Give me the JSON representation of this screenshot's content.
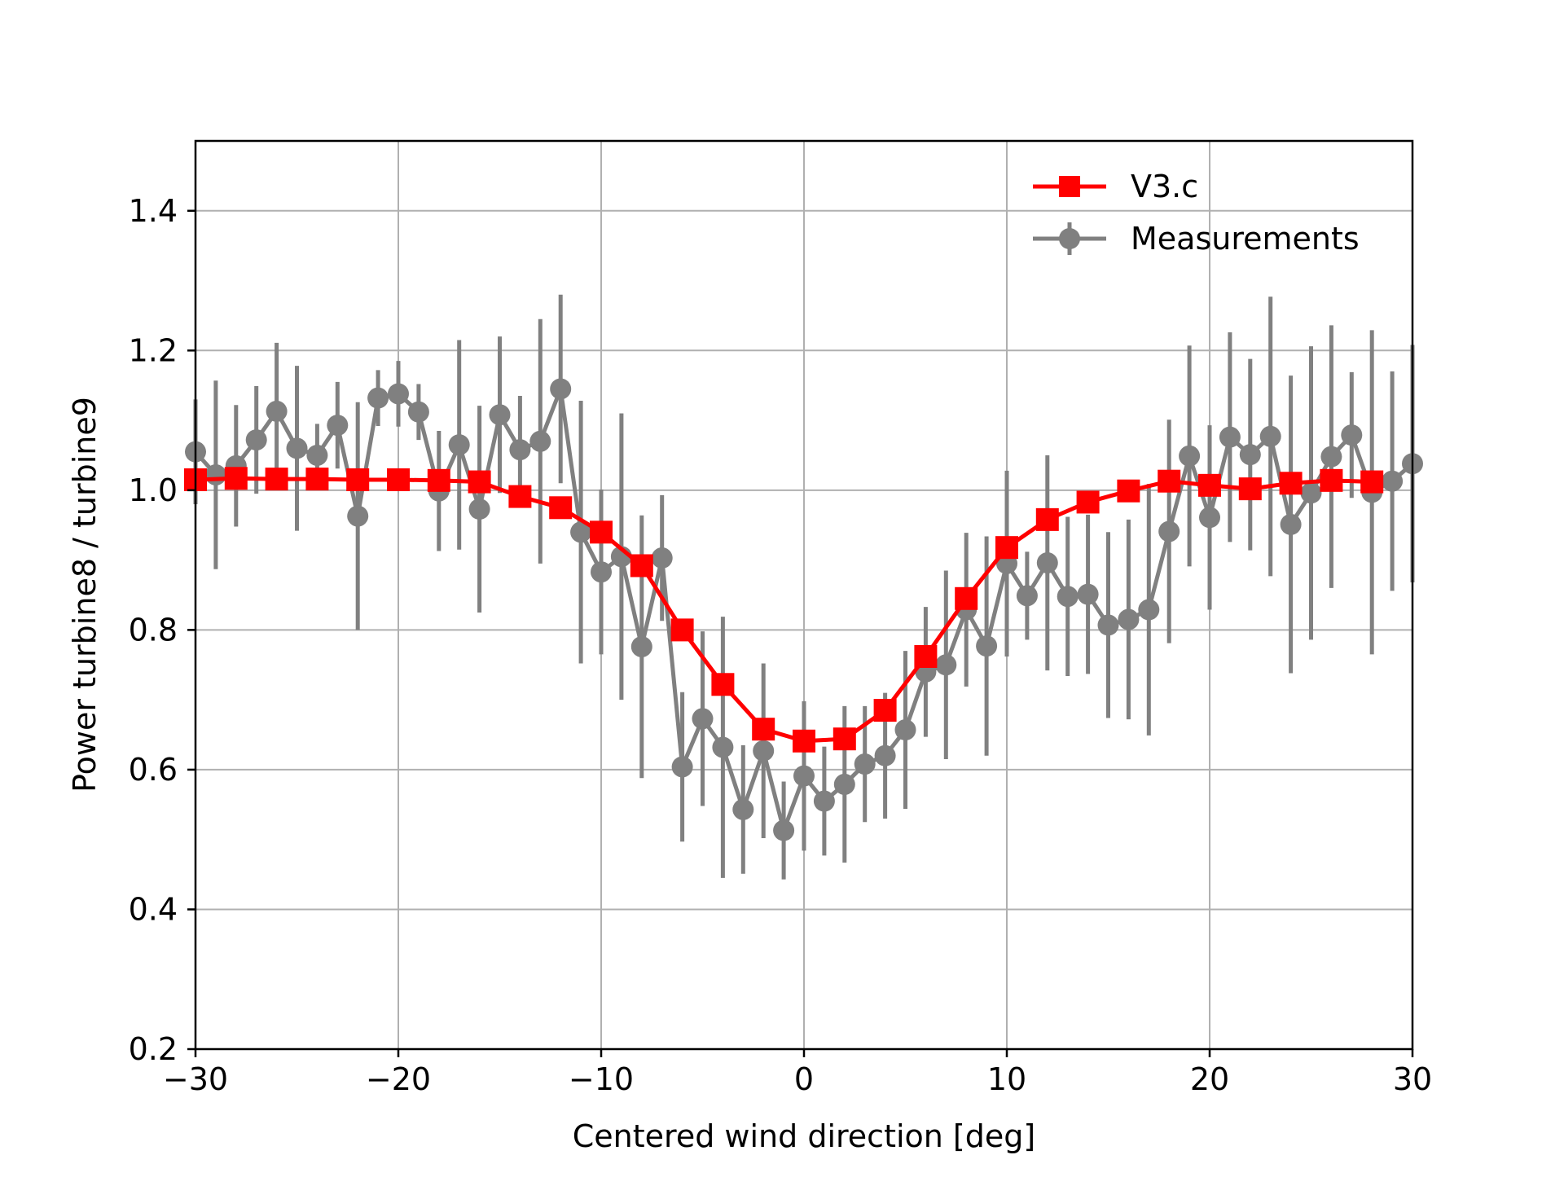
{
  "chart_data": {
    "type": "line",
    "title": "",
    "xlabel": "Centered wind direction [deg]",
    "ylabel": "Power turbine8 / turbine9",
    "xlim": [
      -30,
      30
    ],
    "ylim": [
      0.2,
      1.5
    ],
    "xticks": [
      -30,
      -20,
      -10,
      0,
      10,
      20,
      30
    ],
    "xtick_labels": [
      "−30",
      "−20",
      "−10",
      "0",
      "10",
      "20",
      "30"
    ],
    "yticks": [
      0.2,
      0.4,
      0.6,
      0.8,
      1.0,
      1.2,
      1.4
    ],
    "ytick_labels": [
      "0.2",
      "0.4",
      "0.6",
      "0.8",
      "1.0",
      "1.2",
      "1.4"
    ],
    "grid": true,
    "legend_position": "top-right",
    "series": [
      {
        "name": "V3.c",
        "color": "#ff0000",
        "marker": "square",
        "x": [
          -30,
          -28,
          -26,
          -24,
          -22,
          -20,
          -18,
          -16,
          -14,
          -12,
          -10,
          -8,
          -6,
          -4,
          -2,
          0,
          2,
          4,
          6,
          8,
          10,
          12,
          14,
          16,
          18,
          20,
          22,
          24,
          26,
          28
        ],
        "y": [
          1.015,
          1.017,
          1.016,
          1.016,
          1.015,
          1.015,
          1.014,
          1.012,
          0.991,
          0.975,
          0.94,
          0.892,
          0.8,
          0.722,
          0.658,
          0.641,
          0.644,
          0.685,
          0.762,
          0.845,
          0.918,
          0.958,
          0.983,
          0.999,
          1.013,
          1.007,
          1.002,
          1.01,
          1.014,
          1.012
        ]
      },
      {
        "name": "Measurements",
        "color": "#808080",
        "marker": "circle",
        "x": [
          -30,
          -29,
          -28,
          -27,
          -26,
          -25,
          -24,
          -23,
          -22,
          -21,
          -20,
          -19,
          -18,
          -17,
          -16,
          -15,
          -14,
          -13,
          -12,
          -11,
          -10,
          -9,
          -8,
          -7,
          -6,
          -5,
          -4,
          -3,
          -2,
          -1,
          0,
          1,
          2,
          3,
          4,
          5,
          6,
          7,
          8,
          9,
          10,
          11,
          12,
          13,
          14,
          15,
          16,
          17,
          18,
          19,
          20,
          21,
          22,
          23,
          24,
          25,
          26,
          27,
          28,
          29,
          30
        ],
        "y": [
          1.055,
          1.022,
          1.035,
          1.072,
          1.113,
          1.06,
          1.05,
          1.093,
          0.963,
          1.132,
          1.138,
          1.112,
          0.999,
          1.065,
          0.973,
          1.108,
          1.058,
          1.07,
          1.145,
          0.94,
          0.883,
          0.905,
          0.776,
          0.903,
          0.604,
          0.673,
          0.632,
          0.543,
          0.627,
          0.513,
          0.591,
          0.555,
          0.579,
          0.608,
          0.62,
          0.657,
          0.74,
          0.75,
          0.829,
          0.777,
          0.895,
          0.849,
          0.896,
          0.848,
          0.851,
          0.807,
          0.815,
          0.829,
          0.941,
          1.049,
          0.961,
          1.076,
          1.051,
          1.077,
          0.951,
          0.996,
          1.048,
          1.079,
          0.997,
          1.013,
          1.038
        ],
        "yerr": [
          0.075,
          0.135,
          0.087,
          0.077,
          0.098,
          0.118,
          0.045,
          0.062,
          0.163,
          0.04,
          0.047,
          0.04,
          0.086,
          0.15,
          0.148,
          0.112,
          0.077,
          0.175,
          0.135,
          0.188,
          0.118,
          0.205,
          0.188,
          0.09,
          0.107,
          0.125,
          0.187,
          0.092,
          0.125,
          0.07,
          0.107,
          0.078,
          0.112,
          0.083,
          0.09,
          0.113,
          0.093,
          0.135,
          0.11,
          0.157,
          0.133,
          0.063,
          0.154,
          0.114,
          0.114,
          0.133,
          0.143,
          0.18,
          0.16,
          0.158,
          0.132,
          0.15,
          0.137,
          0.2,
          0.213,
          0.21,
          0.188,
          0.09,
          0.232,
          0.157,
          0.17
        ]
      }
    ]
  }
}
